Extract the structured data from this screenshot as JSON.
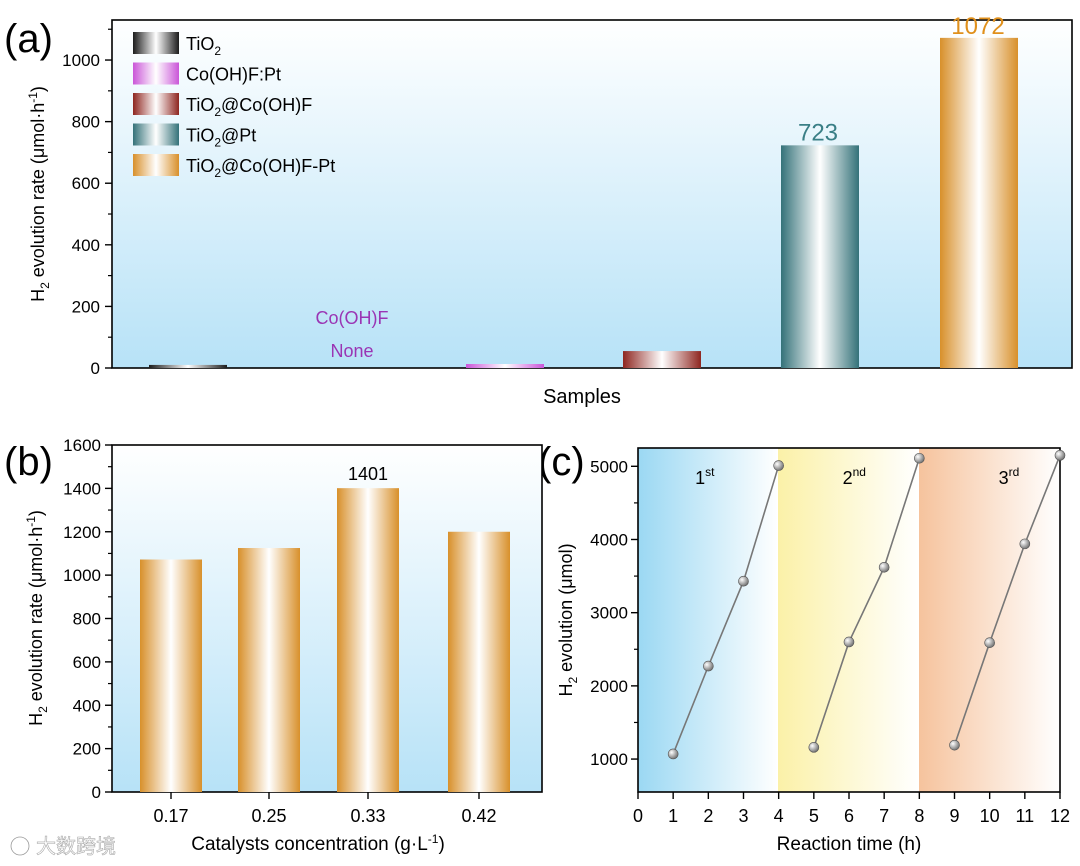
{
  "chart_data": [
    {
      "panel": "(a)",
      "type": "bar",
      "xlabel": "Samples",
      "ylabel_main": "H",
      "ylabel_sub": "2",
      "ylabel_rest": " evolution rate (μmol·h",
      "ylabel_sup": "-1",
      "ylabel_end": ")",
      "ylim": [
        0,
        1130
      ],
      "yticks": [
        0,
        200,
        400,
        600,
        800,
        1000
      ],
      "legend": [
        {
          "main": "TiO",
          "sub": "2",
          "rest": "",
          "color": "#1f1f1f"
        },
        {
          "main": "Co(OH)F:Pt",
          "sub": "",
          "rest": "",
          "color": "#e060f0"
        },
        {
          "main": "TiO",
          "sub": "2",
          "rest": "@Co(OH)F",
          "color": "#9e2a24"
        },
        {
          "main": "TiO",
          "sub": "2",
          "rest": "@Pt",
          "color": "#3a7f86"
        },
        {
          "main": "TiO",
          "sub": "2",
          "rest": "@Co(OH)F-Pt",
          "color": "#f0a030"
        }
      ],
      "series": [
        {
          "name": "TiO2",
          "value": 10,
          "color": "#1f1f1f"
        },
        {
          "name": "Co(OH)F",
          "value": 0,
          "color": "#b040c8"
        },
        {
          "name": "Co(OH)F:Pt",
          "value": 13,
          "color": "#e060f0"
        },
        {
          "name": "TiO2@Co(OH)F",
          "value": 55,
          "color": "#9e2a24"
        },
        {
          "name": "TiO2@Pt",
          "value": 723,
          "color": "#3a7f86"
        },
        {
          "name": "TiO2@Co(OH)F-Pt",
          "value": 1072,
          "color": "#f0a030"
        }
      ],
      "annotations": {
        "none_top": "Co(OH)F",
        "none_bottom": "None",
        "label_723": "723",
        "label_1072": "1072"
      }
    },
    {
      "panel": "(b)",
      "type": "bar",
      "xlabel_main": "Catalysts concentration (g·L",
      "xlabel_sup": "-1",
      "xlabel_end": ")",
      "ylabel_main": "H",
      "ylabel_sub": "2",
      "ylabel_rest": " evolution rate (μmol·h",
      "ylabel_sup": "-1",
      "ylabel_end": ")",
      "ylim": [
        0,
        1600
      ],
      "yticks": [
        0,
        200,
        400,
        600,
        800,
        1000,
        1200,
        1400,
        1600
      ],
      "categories": [
        "0.17",
        "0.25",
        "0.33",
        "0.42"
      ],
      "values": [
        1072,
        1125,
        1401,
        1200
      ],
      "annotation": "1401",
      "color": "#f0a030"
    },
    {
      "panel": "(c)",
      "type": "line",
      "xlabel": "Reaction time (h)",
      "ylabel_main": "H",
      "ylabel_sub": "2",
      "ylabel_rest": " evolution (μmol)",
      "xlim": [
        0,
        12
      ],
      "ylim": [
        550,
        5250
      ],
      "xticks": [
        0,
        1,
        2,
        3,
        4,
        5,
        6,
        7,
        8,
        9,
        10,
        11,
        12
      ],
      "yticks": [
        1000,
        2000,
        3000,
        4000,
        5000
      ],
      "cycles": [
        {
          "label_main": "1",
          "label_sup": "st",
          "x": [
            1,
            2,
            3,
            4
          ],
          "y": [
            1070,
            2270,
            3430,
            5010
          ]
        },
        {
          "label_main": "2",
          "label_sup": "nd",
          "x": [
            5,
            6,
            7,
            8
          ],
          "y": [
            1160,
            2600,
            3620,
            5110
          ]
        },
        {
          "label_main": "3",
          "label_sup": "rd",
          "x": [
            9,
            10,
            11,
            12
          ],
          "y": [
            1190,
            2590,
            3940,
            5150
          ]
        }
      ]
    }
  ],
  "panel_labels": {
    "a": "(a)",
    "b": "(b)",
    "c": "(c)"
  },
  "watermark": "大数跨境"
}
